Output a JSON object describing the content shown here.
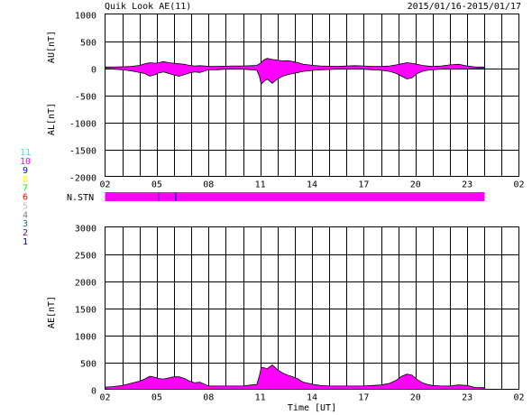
{
  "header": {
    "title": "Quik Look AE(11)",
    "date_range": "2015/01/16-2015/01/17"
  },
  "colors": {
    "fill": "#ff00ff",
    "grid": "#000000",
    "station_bar": "#ff00ff"
  },
  "station_legend": [
    {
      "label": "11",
      "color": "#00ffff"
    },
    {
      "label": "10",
      "color": "#ff00ff"
    },
    {
      "label": "9",
      "color": "#0000ff"
    },
    {
      "label": "8",
      "color": "#ffff00"
    },
    {
      "label": "7",
      "color": "#00ff00"
    },
    {
      "label": "6",
      "color": "#ff0000"
    },
    {
      "label": "5",
      "color": "#c0c0c0"
    },
    {
      "label": "4",
      "color": "#808080"
    },
    {
      "label": "3",
      "color": "#008080"
    },
    {
      "label": "2",
      "color": "#800080"
    },
    {
      "label": "1",
      "color": "#000080"
    }
  ],
  "x_axis": {
    "label": "Time [UT]",
    "ticks": [
      "02",
      "05",
      "08",
      "11",
      "14",
      "17",
      "20",
      "23",
      "02"
    ],
    "range_hours": [
      2,
      26
    ],
    "data_end_hour": 24
  },
  "station_panel": {
    "label": "N.STN",
    "marks_hours": [
      5.1,
      6.1
    ]
  },
  "chart_data": [
    {
      "type": "area",
      "name": "AU/AL panel",
      "ylabel_top": "AU[nT]",
      "ylabel_bottom": "AL[nT]",
      "ylim": [
        -2000,
        1000
      ],
      "yticks": [
        "1000",
        "500",
        "0",
        "-500",
        "-1000",
        "-1500",
        "-2000"
      ],
      "grid": true,
      "x_hours": [
        2.0,
        2.5,
        3.0,
        3.5,
        4.0,
        4.3,
        4.6,
        4.9,
        5.1,
        5.4,
        5.7,
        6.0,
        6.3,
        6.6,
        6.9,
        7.2,
        7.5,
        7.8,
        8.0,
        8.5,
        9.0,
        9.5,
        10.0,
        10.5,
        10.8,
        10.95,
        11.05,
        11.2,
        11.4,
        11.7,
        12.0,
        12.3,
        12.6,
        12.9,
        13.2,
        13.5,
        13.8,
        14.1,
        14.5,
        15.0,
        15.5,
        16.0,
        16.5,
        17.0,
        17.5,
        18.0,
        18.5,
        18.9,
        19.2,
        19.5,
        19.8,
        20.1,
        20.4,
        20.7,
        21.0,
        21.5,
        22.0,
        22.5,
        23.0,
        23.5,
        24.0
      ],
      "au_values": [
        20,
        20,
        25,
        30,
        50,
        80,
        100,
        90,
        100,
        120,
        100,
        90,
        80,
        70,
        50,
        40,
        45,
        40,
        30,
        30,
        35,
        40,
        40,
        45,
        50,
        80,
        100,
        150,
        180,
        160,
        150,
        130,
        140,
        120,
        100,
        70,
        60,
        50,
        40,
        35,
        30,
        40,
        45,
        40,
        30,
        30,
        40,
        60,
        80,
        100,
        90,
        70,
        50,
        40,
        30,
        40,
        60,
        70,
        40,
        20,
        20
      ],
      "al_values": [
        -10,
        -20,
        -30,
        -50,
        -80,
        -100,
        -150,
        -120,
        -90,
        -70,
        -100,
        -130,
        -150,
        -120,
        -90,
        -70,
        -80,
        -50,
        -30,
        -30,
        -20,
        -20,
        -20,
        -30,
        -40,
        -150,
        -300,
        -250,
        -200,
        -280,
        -200,
        -150,
        -120,
        -100,
        -80,
        -60,
        -50,
        -40,
        -30,
        -25,
        -20,
        -20,
        -20,
        -20,
        -30,
        -40,
        -60,
        -100,
        -150,
        -200,
        -180,
        -100,
        -60,
        -40,
        -30,
        -20,
        -20,
        -20,
        -20,
        -10,
        -10
      ]
    },
    {
      "type": "area",
      "name": "AE panel",
      "ylabel": "AE[nT]",
      "ylim": [
        0,
        3000
      ],
      "yticks": [
        "3000",
        "2500",
        "2000",
        "1500",
        "1000",
        "500",
        "0"
      ],
      "grid": true,
      "x_hours": [
        2.0,
        2.5,
        3.0,
        3.5,
        4.0,
        4.3,
        4.6,
        4.9,
        5.1,
        5.4,
        5.7,
        6.0,
        6.3,
        6.6,
        6.9,
        7.2,
        7.5,
        7.8,
        8.0,
        8.5,
        9.0,
        9.5,
        10.0,
        10.5,
        10.8,
        10.95,
        11.05,
        11.2,
        11.4,
        11.7,
        12.0,
        12.3,
        12.6,
        12.9,
        13.2,
        13.5,
        13.8,
        14.1,
        14.5,
        15.0,
        15.5,
        16.0,
        16.5,
        17.0,
        17.5,
        18.0,
        18.5,
        18.9,
        19.2,
        19.5,
        19.8,
        20.1,
        20.4,
        20.7,
        21.0,
        21.5,
        22.0,
        22.5,
        23.0,
        23.5,
        24.0
      ],
      "values": [
        40,
        50,
        70,
        110,
        150,
        190,
        240,
        220,
        200,
        190,
        210,
        230,
        230,
        200,
        150,
        120,
        130,
        90,
        60,
        60,
        60,
        60,
        60,
        80,
        90,
        250,
        400,
        400,
        380,
        450,
        360,
        300,
        260,
        230,
        190,
        130,
        110,
        90,
        70,
        60,
        60,
        60,
        60,
        60,
        70,
        80,
        110,
        170,
        240,
        280,
        260,
        180,
        120,
        90,
        70,
        60,
        60,
        80,
        70,
        30,
        30
      ]
    }
  ]
}
